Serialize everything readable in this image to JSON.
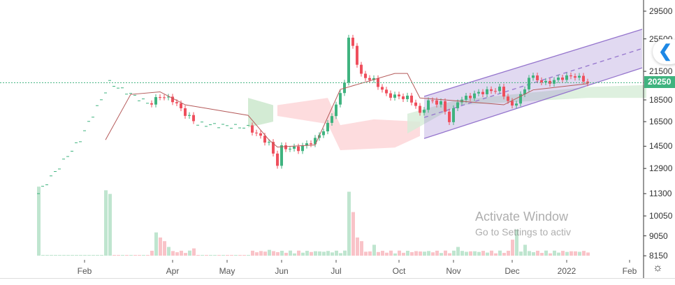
{
  "chart_data": {
    "type": "candlestick",
    "scale": "log",
    "y_ticks": [
      "29500",
      "25500",
      "21500",
      "18500",
      "16500",
      "14500",
      "12900",
      "11300",
      "10050",
      "9050",
      "8150"
    ],
    "y_tick_values": [
      29500,
      25500,
      21500,
      18500,
      16500,
      14500,
      12900,
      11300,
      10050,
      9050,
      8150
    ],
    "last_price": "20250",
    "x_ticks": [
      {
        "label": "Feb",
        "bar": 11
      },
      {
        "label": "Apr",
        "bar": 32
      },
      {
        "label": "May",
        "bar": 45
      },
      {
        "label": "Jun",
        "bar": 58
      },
      {
        "label": "Jul",
        "bar": 71
      },
      {
        "label": "Oct",
        "bar": 86
      },
      {
        "label": "Nov",
        "bar": 99
      },
      {
        "label": "Dec",
        "bar": 113
      },
      {
        "label": "2022",
        "bar": 126
      },
      {
        "label": "Feb",
        "bar": 141
      }
    ],
    "close_keypoints": [
      [
        0,
        11300
      ],
      [
        5,
        13000
      ],
      [
        10,
        15000
      ],
      [
        15,
        18500
      ],
      [
        17,
        20250
      ],
      [
        20,
        19500
      ],
      [
        26,
        18200
      ],
      [
        27,
        18200
      ],
      [
        29,
        18900
      ],
      [
        32,
        18500
      ],
      [
        35,
        17200
      ],
      [
        38,
        16300
      ],
      [
        50,
        16000
      ],
      [
        55,
        14700
      ],
      [
        57,
        13200
      ],
      [
        58,
        14400
      ],
      [
        62,
        14300
      ],
      [
        66,
        15000
      ],
      [
        69,
        16200
      ],
      [
        72,
        19000
      ],
      [
        73,
        20500
      ],
      [
        74,
        25500
      ],
      [
        75,
        24500
      ],
      [
        76,
        22500
      ],
      [
        77,
        21000
      ],
      [
        80,
        20500
      ],
      [
        83,
        19000
      ],
      [
        88,
        18700
      ],
      [
        90,
        18000
      ],
      [
        91,
        17100
      ],
      [
        93,
        18400
      ],
      [
        96,
        18200
      ],
      [
        98,
        16600
      ],
      [
        100,
        18400
      ],
      [
        105,
        19200
      ],
      [
        110,
        19600
      ],
      [
        113,
        17800
      ],
      [
        116,
        19500
      ],
      [
        117,
        21000
      ],
      [
        121,
        20200
      ],
      [
        125,
        20800
      ],
      [
        128,
        21000
      ],
      [
        131,
        20250
      ]
    ],
    "thin_ranges": [
      [
        0,
        26
      ],
      [
        38,
        50
      ]
    ],
    "volume_keypoints": [
      [
        0,
        95
      ],
      [
        16,
        90
      ],
      [
        17,
        85
      ],
      [
        28,
        32
      ],
      [
        29,
        25
      ],
      [
        30,
        20
      ],
      [
        31,
        12
      ],
      [
        37,
        10
      ],
      [
        55,
        8
      ],
      [
        74,
        88
      ],
      [
        75,
        60
      ],
      [
        76,
        25
      ],
      [
        77,
        20
      ],
      [
        80,
        15
      ],
      [
        100,
        12
      ],
      [
        113,
        22
      ],
      [
        114,
        36
      ],
      [
        116,
        15
      ]
    ],
    "kijun": [
      [
        16,
        14990
      ],
      [
        22,
        19040
      ],
      [
        29,
        19300
      ],
      [
        35,
        18030
      ],
      [
        40,
        17700
      ],
      [
        50,
        17060
      ],
      [
        55,
        14990
      ],
      [
        57,
        14440
      ],
      [
        66,
        14600
      ],
      [
        72,
        19550
      ],
      [
        85,
        21260
      ],
      [
        88,
        21260
      ],
      [
        91,
        18690
      ],
      [
        100,
        18400
      ],
      [
        111,
        18030
      ],
      [
        118,
        19500
      ],
      [
        131,
        20150
      ]
    ],
    "clouds": [
      {
        "color": "#c8e6c9",
        "upper": [
          [
            50,
            18700
          ],
          [
            56,
            18000
          ]
        ],
        "lower": [
          [
            50,
            16000
          ],
          [
            56,
            16500
          ]
        ]
      },
      {
        "color": "#fcd3d6",
        "upper": [
          [
            57,
            18000
          ],
          [
            69,
            18700
          ],
          [
            72,
            16200
          ],
          [
            80,
            16700
          ],
          [
            91,
            16500
          ]
        ],
        "lower": [
          [
            57,
            17000
          ],
          [
            69,
            16300
          ],
          [
            72,
            14200
          ],
          [
            85,
            14400
          ],
          [
            91,
            15300
          ]
        ]
      },
      {
        "color": "#d6ecd7",
        "upper": [
          [
            88,
            17200
          ],
          [
            100,
            18500
          ],
          [
            131,
            19800
          ],
          [
            145,
            20000
          ]
        ],
        "lower": [
          [
            88,
            15500
          ],
          [
            100,
            18000
          ],
          [
            131,
            18700
          ],
          [
            145,
            18700
          ]
        ]
      }
    ],
    "channel": {
      "start_bar": 92,
      "end_bar": 144,
      "upper": [
        18840,
        26820
      ],
      "lower": [
        15100,
        21900
      ]
    },
    "colors": {
      "up": "#3fb37f",
      "down": "#ef4f5d",
      "vol_up": "#bfe5cf",
      "vol_down": "#f9c3c8",
      "kijun": "#b55a5a",
      "channel": "#9575cd",
      "channel_fill": "rgba(149,117,205,0.28)",
      "price_line": "#3fb37f"
    }
  },
  "ui": {
    "collapse_icon": "chevron-left-icon",
    "settings_icon": "gear-icon",
    "watermark_line1": "Activate Window",
    "watermark_line2": "Go to Settings to activ"
  }
}
